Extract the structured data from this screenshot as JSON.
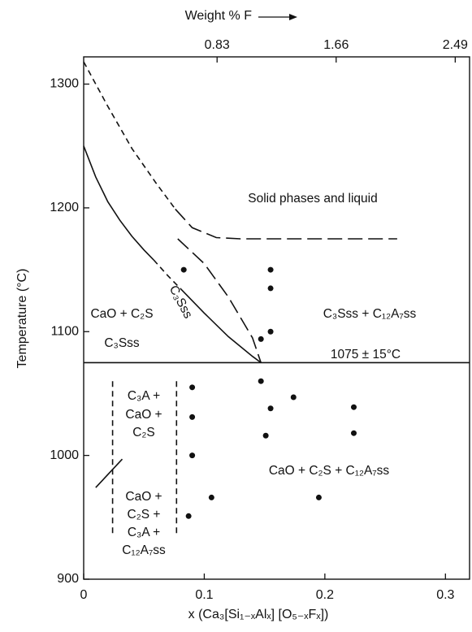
{
  "chart_data": {
    "type": "phase-diagram",
    "x_label": "x (Ca₃[Si₁₋ₓAlₓ] [O₅₋ₓFₓ])",
    "y_label": "Temperature (°C)",
    "x2_label": "Weight % F",
    "xlim": [
      0,
      0.32
    ],
    "xticks": [
      0,
      0.1,
      0.2,
      0.3
    ],
    "ylim": [
      900,
      1322
    ],
    "yticks": [
      900,
      1000,
      1100,
      1200,
      1300
    ],
    "x2lim": [
      -0.1,
      2.59
    ],
    "x2ticks": [
      0.83,
      1.66,
      2.49
    ],
    "series": [
      {
        "dash": "dashed",
        "x": [
          0,
          0.02,
          0.04,
          0.06,
          0.076
        ],
        "values": [
          1318,
          1282,
          1248,
          1220,
          1199
        ]
      },
      {
        "dash": "long-dashed",
        "x": [
          0.076,
          0.09,
          0.11,
          0.13,
          0.16,
          0.2,
          0.26
        ],
        "values": [
          1199,
          1184,
          1176,
          1175,
          1175,
          1175,
          1175
        ]
      },
      {
        "dash": "solid",
        "x": [
          0,
          0.01,
          0.02,
          0.03,
          0.04,
          0.05,
          0.058
        ],
        "values": [
          1250,
          1225,
          1205,
          1190,
          1177,
          1166,
          1158
        ]
      },
      {
        "dash": "dashed",
        "x": [
          0.058,
          0.07,
          0.08
        ],
        "values": [
          1158,
          1145,
          1135
        ]
      },
      {
        "dash": "solid",
        "x": [
          0.08,
          0.1,
          0.12,
          0.14,
          0.147
        ],
        "values": [
          1135,
          1115,
          1096,
          1080,
          1075
        ]
      },
      {
        "dash": "long-dashed",
        "x": [
          0.078,
          0.1,
          0.12,
          0.14,
          0.147
        ],
        "values": [
          1175,
          1155,
          1128,
          1095,
          1075
        ]
      },
      {
        "dash": "solid",
        "x": [
          0,
          0.32
        ],
        "values": [
          1075,
          1075
        ]
      },
      {
        "dash": "dashed",
        "x": [
          0.024,
          0.024
        ],
        "values": [
          1060,
          934
        ]
      },
      {
        "dash": "dashed",
        "x": [
          0.077,
          0.077
        ],
        "values": [
          1060,
          934
        ]
      },
      {
        "dash": "solid",
        "x": [
          0.01,
          0.032
        ],
        "values": [
          974,
          997
        ]
      }
    ],
    "points": {
      "color": "#111",
      "x": [
        0.083,
        0.155,
        0.155,
        0.155,
        0.147,
        0.09,
        0.147,
        0.155,
        0.174,
        0.224,
        0.224,
        0.151,
        0.09,
        0.09,
        0.106,
        0.195,
        0.087
      ],
      "values": [
        1150,
        1150,
        1135,
        1100,
        1094,
        1055,
        1060,
        1038,
        1047,
        1039,
        1018,
        1016,
        1031,
        1000,
        966,
        966,
        951
      ]
    },
    "annotations": [
      "Solid phases and liquid",
      "CaO + C₂S",
      "C₃Sss",
      "C₃Sss",
      "C₃Sss + C₁₂A₇ss",
      "1075 ± 15°C",
      "C₃A +",
      "CaO +",
      "C₂S",
      "CaO +",
      "C₂S +",
      "C₃A +",
      "C₁₂A₇ss",
      "CaO + C₂S + C₁₂A₇ss"
    ]
  }
}
